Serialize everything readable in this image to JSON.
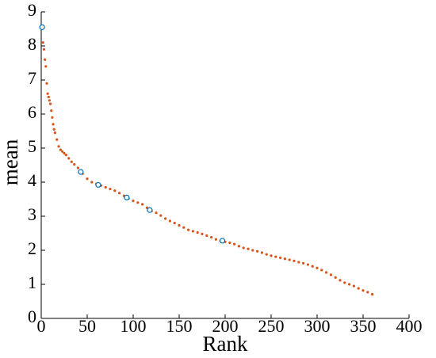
{
  "chart_data": {
    "type": "scatter",
    "xlabel": "Rank",
    "ylabel": "mean",
    "xlim": [
      0,
      400
    ],
    "ylim": [
      0,
      9
    ],
    "xticks": [
      0,
      50,
      100,
      150,
      200,
      250,
      300,
      350,
      400
    ],
    "yticks": [
      0,
      1,
      2,
      3,
      4,
      5,
      6,
      7,
      8,
      9
    ],
    "series": [
      {
        "color": "#d95319",
        "marker": "dot",
        "x": [
          2,
          3,
          4,
          5,
          6,
          7,
          8,
          9,
          10,
          11,
          12,
          13,
          14,
          15,
          17,
          19,
          21,
          23,
          25,
          27,
          30,
          33,
          36,
          40,
          45,
          50,
          55,
          60,
          65,
          70,
          75,
          80,
          85,
          90,
          95,
          100,
          105,
          110,
          115,
          120,
          125,
          130,
          135,
          140,
          145,
          150,
          155,
          160,
          165,
          170,
          175,
          180,
          185,
          190,
          195,
          200,
          205,
          210,
          215,
          220,
          225,
          230,
          235,
          240,
          245,
          250,
          255,
          260,
          265,
          270,
          275,
          280,
          285,
          290,
          295,
          300,
          305,
          310,
          315,
          320,
          325,
          330,
          335,
          340,
          345,
          350,
          355,
          360
        ],
        "values": [
          8.1,
          7.9,
          7.6,
          7.4,
          6.9,
          6.6,
          6.5,
          6.4,
          6.3,
          6.1,
          5.9,
          5.7,
          5.55,
          5.45,
          5.25,
          5.05,
          4.95,
          4.9,
          4.85,
          4.8,
          4.7,
          4.6,
          4.52,
          4.42,
          4.25,
          4.1,
          4.0,
          3.95,
          3.9,
          3.85,
          3.8,
          3.75,
          3.68,
          3.6,
          3.52,
          3.45,
          3.4,
          3.35,
          3.25,
          3.15,
          3.1,
          3.02,
          2.93,
          2.86,
          2.8,
          2.73,
          2.67,
          2.6,
          2.56,
          2.52,
          2.48,
          2.43,
          2.38,
          2.32,
          2.28,
          2.25,
          2.22,
          2.18,
          2.12,
          2.07,
          2.04,
          2.0,
          1.97,
          1.93,
          1.88,
          1.84,
          1.81,
          1.78,
          1.75,
          1.72,
          1.69,
          1.65,
          1.62,
          1.58,
          1.53,
          1.48,
          1.42,
          1.35,
          1.28,
          1.2,
          1.12,
          1.05,
          1.0,
          0.95,
          0.88,
          0.82,
          0.77,
          0.71
        ]
      },
      {
        "color": "#0072bd",
        "marker": "circle",
        "x": [
          1,
          43,
          62,
          93,
          118,
          197
        ],
        "values": [
          8.55,
          4.3,
          3.92,
          3.55,
          3.18,
          2.28
        ]
      }
    ]
  }
}
